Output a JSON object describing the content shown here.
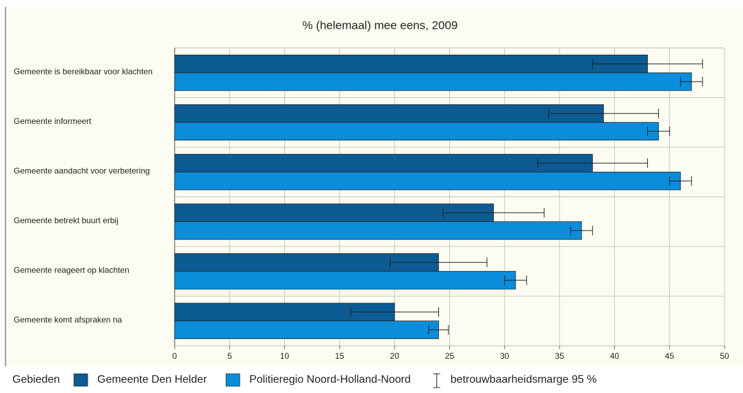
{
  "chart_data": {
    "type": "bar",
    "orientation": "horizontal",
    "title": "% (helemaal) mee eens, 2009",
    "categories": [
      "Gemeente is bereikbaar voor klachten",
      "Gemeente informeert",
      "Gemeente aandacht voor verbetering",
      "Gemeente betrekt buurt erbij",
      "Gemeente reageert op klachten",
      "Gemeente komt afspraken na"
    ],
    "series": [
      {
        "name": "Gemeente Den Helder",
        "color": "#0c5b92",
        "values": [
          43,
          39,
          38,
          29,
          24,
          20
        ],
        "errors": [
          5,
          5,
          5,
          4.6,
          4.4,
          4
        ]
      },
      {
        "name": "Politieregio Noord-Holland-Noord",
        "color": "#0a8ddb",
        "values": [
          47,
          44,
          46,
          37,
          31,
          24
        ],
        "errors": [
          1,
          1,
          1,
          1,
          1,
          0.9
        ]
      }
    ],
    "legend_title": "Gebieden",
    "error_label": "betrouwbaarheidsmarge 95 %",
    "legend": "bottom",
    "xlim": [
      0,
      50
    ],
    "xticks": [
      0,
      5,
      10,
      15,
      20,
      25,
      30,
      35,
      40,
      45,
      50
    ],
    "grid": true
  }
}
